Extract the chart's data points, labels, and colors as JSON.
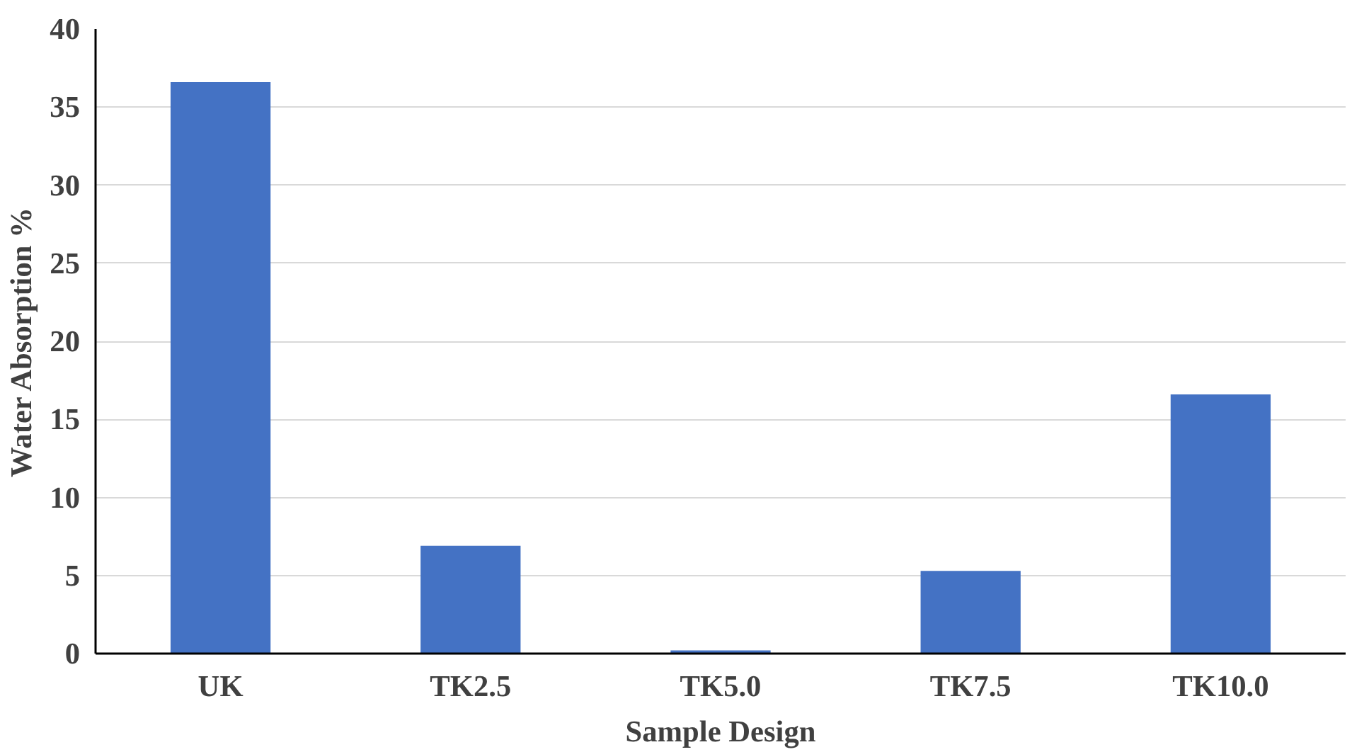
{
  "chart_data": {
    "type": "bar",
    "xlabel": "Sample Design",
    "ylabel": "Water Absorption %",
    "categories": [
      "UK",
      "TK2.5",
      "TK5.0",
      "TK7.5",
      "TK10.0"
    ],
    "values": [
      36.6,
      6.9,
      0.2,
      5.3,
      16.6
    ],
    "color": "#4472c4",
    "ylim": [
      0,
      40
    ],
    "yticks": [
      0,
      5,
      10,
      15,
      20,
      25,
      30,
      35,
      40
    ],
    "grid": "y"
  }
}
